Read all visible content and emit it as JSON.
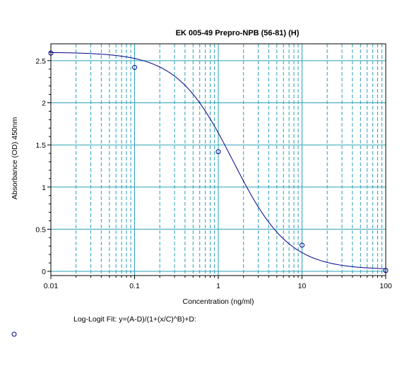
{
  "chart_data": {
    "type": "scatter",
    "title": "EK 005-49 Prepro-NPB (56-81) (H)",
    "xlabel": "Concentration (ng/ml)",
    "ylabel": "Absorbance (OD) 450nm",
    "x_scale": "log",
    "xlim": [
      0.01,
      100
    ],
    "ylim": [
      -0.05,
      2.7
    ],
    "x_ticks": [
      0.01,
      0.1,
      1,
      10,
      100
    ],
    "x_tick_labels": [
      "0.01",
      "0.1",
      "1",
      "10",
      "100"
    ],
    "y_ticks": [
      0,
      0.5,
      1,
      1.5,
      2,
      2.5
    ],
    "y_tick_labels": [
      "0",
      "0.5",
      "1",
      "1.5",
      "2",
      "2.5"
    ],
    "grid": true,
    "fit_label": "Log-Logit Fit: y=(A-D)/(1+(x/C)^B)+D:",
    "series": [
      {
        "marker": "circle",
        "x": [
          0.01,
          0.1,
          1,
          10,
          100
        ],
        "y": [
          2.59,
          2.42,
          1.42,
          0.31,
          0.01
        ]
      }
    ],
    "fit_curve": {
      "A": 2.6,
      "B": 1.3,
      "C": 1.5,
      "D": 0.02
    },
    "colors": {
      "grid": "#2ba0b8",
      "curve": "#00008b",
      "marker": "#00008b",
      "text": "#000000"
    }
  }
}
